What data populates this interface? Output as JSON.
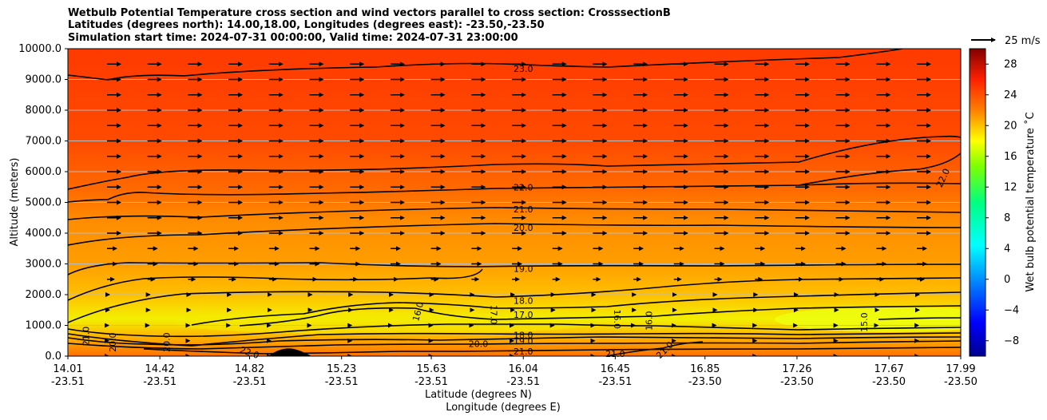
{
  "chart_data": {
    "type": "contour",
    "title_lines": [
      "Wetbulb Potential Temperature cross section and wind vectors parallel to cross section: CrosssectionB",
      "Latitudes (degrees north): 14.00,18.00, Longitudes (degrees east): -23.50,-23.50",
      "Simulation start time: 2024-07-31 00:00:00, Valid time: 2024-07-31 23:00:00"
    ],
    "xlabel_lat": "Latitude (degrees N)",
    "xlabel_lon": "Longitude (degrees E)",
    "ylabel": "Altitude (meters)",
    "ylim": [
      0,
      10000
    ],
    "y_ticks": [
      "0.0",
      "1000.0",
      "2000.0",
      "3000.0",
      "4000.0",
      "5000.0",
      "6000.0",
      "7000.0",
      "8000.0",
      "9000.0",
      "10000.0"
    ],
    "x_ticks": [
      {
        "lat": "14.01",
        "lon": "-23.51"
      },
      {
        "lat": "14.42",
        "lon": "-23.51"
      },
      {
        "lat": "14.82",
        "lon": "-23.51"
      },
      {
        "lat": "15.23",
        "lon": "-23.51"
      },
      {
        "lat": "15.63",
        "lon": "-23.51"
      },
      {
        "lat": "16.04",
        "lon": "-23.51"
      },
      {
        "lat": "16.45",
        "lon": "-23.51"
      },
      {
        "lat": "16.85",
        "lon": "-23.50"
      },
      {
        "lat": "17.26",
        "lon": "-23.50"
      },
      {
        "lat": "17.67",
        "lon": "-23.50"
      },
      {
        "lat": "17.99",
        "lon": "-23.50"
      }
    ],
    "grid": "horizontal lines",
    "colorbar": {
      "label": "Wet bulb potential temperature ˚C",
      "ticks": [
        "-8",
        "-4",
        "0",
        "4",
        "8",
        "12",
        "16",
        "20",
        "24",
        "28"
      ],
      "range": [
        -10,
        30
      ],
      "colormap": "jet"
    },
    "quiver_key": {
      "label": "25 m/s"
    },
    "contour_labels": [
      {
        "text": "23.0",
        "x": 16.04,
        "y": 9350
      },
      {
        "text": "22.0",
        "x": 16.04,
        "y": 5500
      },
      {
        "text": "21.0",
        "x": 16.04,
        "y": 4780
      },
      {
        "text": "20.0",
        "x": 16.04,
        "y": 4180
      },
      {
        "text": "19.0",
        "x": 16.04,
        "y": 2850
      },
      {
        "text": "18.0",
        "x": 16.04,
        "y": 1800
      },
      {
        "text": "17.0",
        "x": 16.04,
        "y": 1350
      },
      {
        "text": "18.0",
        "x": 16.04,
        "y": 690
      },
      {
        "text": "19.0",
        "x": 16.04,
        "y": 500
      },
      {
        "text": "21.0",
        "x": 16.04,
        "y": 160
      },
      {
        "text": "20.0",
        "x": 15.84,
        "y": 400
      },
      {
        "text": "22.0",
        "x": 14.82,
        "y": 120
      },
      {
        "text": "21.0",
        "x": 14.09,
        "y": 650
      },
      {
        "text": "20.0",
        "x": 14.21,
        "y": 450
      },
      {
        "text": "20.0",
        "x": 14.45,
        "y": 450
      },
      {
        "text": "16.0",
        "x": 15.57,
        "y": 1450
      },
      {
        "text": "17.0",
        "x": 15.91,
        "y": 1350
      },
      {
        "text": "16.0",
        "x": 16.46,
        "y": 1200
      },
      {
        "text": "16.0",
        "x": 16.6,
        "y": 1150
      },
      {
        "text": "21.0",
        "x": 16.45,
        "y": 80
      },
      {
        "text": "21.0",
        "x": 16.67,
        "y": 200
      },
      {
        "text": "15.0",
        "x": 17.56,
        "y": 1100
      },
      {
        "text": "22.0",
        "x": 17.91,
        "y": 5800
      }
    ]
  }
}
